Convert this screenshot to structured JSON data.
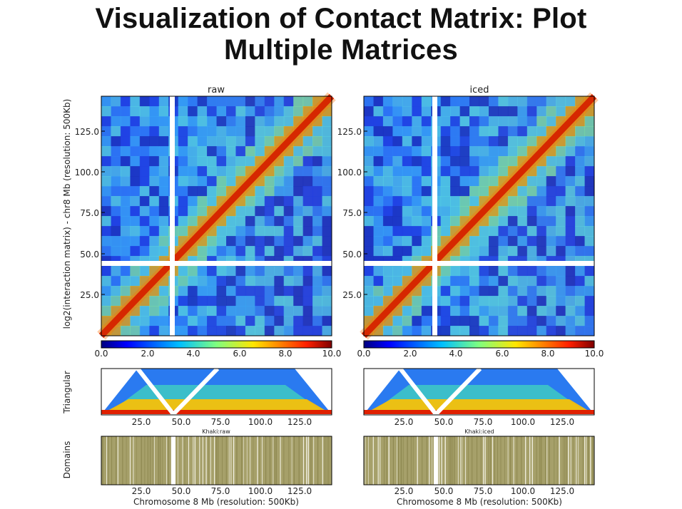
{
  "slide_title_line1": "Visualization of Contact Matrix: Plot",
  "slide_title_line2": "Multiple Matrices",
  "colorbar": {
    "ticks": [
      "0.0",
      "2.0",
      "4.0",
      "6.0",
      "8.0",
      "10.0"
    ],
    "colors": [
      "#00007f",
      "#0000ff",
      "#0080ff",
      "#00e0ff",
      "#7fff7f",
      "#ffe600",
      "#ff6a00",
      "#e00000",
      "#7f0000"
    ]
  },
  "shared_labels": {
    "matrix_ylabel": "log2(interaction matrix) - chr8 Mb (resolution: 500Kb)",
    "triangular_ylabel": "Triangular",
    "domains_ylabel": "Domains",
    "xlabel": "Chromosome 8 Mb (resolution: 500Kb)",
    "matrix_yticks": [
      "125.0",
      "100.0",
      "75.0",
      "50.0",
      "25.0"
    ],
    "genome_xticks": [
      "25.0",
      "50.0",
      "75.0",
      "100.0",
      "125.0"
    ]
  },
  "panels": [
    {
      "title": "raw",
      "triangular_caption": "Khaki:raw"
    },
    {
      "title": "iced",
      "triangular_caption": "Khaki:iced"
    }
  ],
  "domain_color": "#a6a06a"
}
